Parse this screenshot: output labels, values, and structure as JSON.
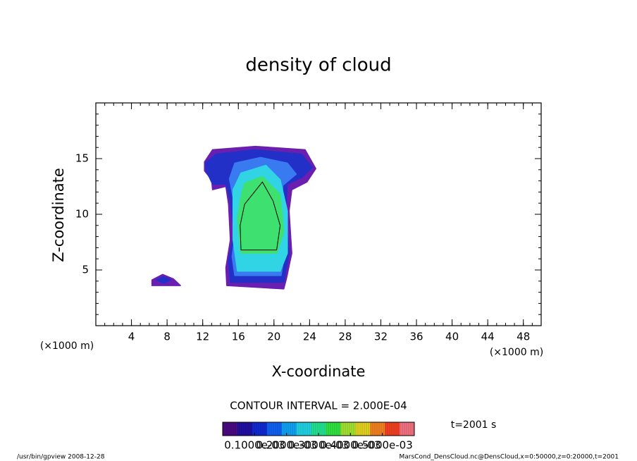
{
  "chart_data": {
    "type": "contour",
    "title": "density of cloud",
    "x_label": "X-coordinate",
    "y_label": "Z-coordinate",
    "x_unit": "(×1000 m)",
    "xlim": [
      0,
      50
    ],
    "xticks": [
      4,
      8,
      12,
      16,
      20,
      24,
      28,
      32,
      36,
      40,
      44,
      48
    ],
    "ylim": [
      0,
      20
    ],
    "yticks": [
      5,
      10,
      15
    ],
    "minor_tick_step": 1,
    "contour_interval": "CONTOUR INTERVAL = 2.000E-04",
    "time": "t=2001 s",
    "regions": [
      {
        "level": 1e-05,
        "color": "#6a1fb0",
        "polygons": [
          [
            [
              12.2,
              14.7
            ],
            [
              13.1,
              15.8
            ],
            [
              17.9,
              16.1
            ],
            [
              23.5,
              15.8
            ],
            [
              24.7,
              14.1
            ],
            [
              23.7,
              12.9
            ],
            [
              22.0,
              12.2
            ],
            [
              21.7,
              10.3
            ],
            [
              22.0,
              6.5
            ],
            [
              21.4,
              4.2
            ],
            [
              21.1,
              3.3
            ],
            [
              14.7,
              3.6
            ],
            [
              14.6,
              5.2
            ],
            [
              15.1,
              7.7
            ],
            [
              14.9,
              10.9
            ],
            [
              14.6,
              12.5
            ],
            [
              13.1,
              12.2
            ],
            [
              13.0,
              13.1
            ],
            [
              12.2,
              13.9
            ]
          ],
          [
            [
              6.3,
              4.1
            ],
            [
              7.5,
              4.6
            ],
            [
              8.7,
              4.2
            ],
            [
              9.5,
              3.6
            ],
            [
              8.3,
              3.6
            ],
            [
              6.3,
              3.6
            ]
          ]
        ]
      },
      {
        "level": 5e-05,
        "color": "#2230c8",
        "polygons": [
          [
            [
              12.3,
              14.6
            ],
            [
              13.5,
              15.4
            ],
            [
              17.9,
              15.8
            ],
            [
              23.1,
              15.4
            ],
            [
              24.3,
              14.2
            ],
            [
              23.1,
              13.3
            ],
            [
              21.5,
              12.7
            ],
            [
              21.3,
              10.3
            ],
            [
              21.7,
              6.5
            ],
            [
              21.1,
              3.9
            ],
            [
              15.1,
              3.9
            ],
            [
              14.9,
              5.8
            ],
            [
              15.5,
              8.4
            ],
            [
              15.1,
              11.2
            ],
            [
              14.6,
              12.7
            ],
            [
              13.1,
              12.7
            ],
            [
              12.4,
              13.9
            ]
          ],
          [
            [
              6.8,
              4.1
            ],
            [
              7.6,
              4.4
            ],
            [
              8.4,
              4.1
            ],
            [
              7.6,
              3.8
            ]
          ]
        ]
      },
      {
        "level": 0.0001,
        "color": "#3a7af0",
        "polygons": [
          [
            [
              15.6,
              14.6
            ],
            [
              18.5,
              15.1
            ],
            [
              21.5,
              14.6
            ],
            [
              22.5,
              13.6
            ],
            [
              21.0,
              12.6
            ],
            [
              20.9,
              10.3
            ],
            [
              21.2,
              6.5
            ],
            [
              20.8,
              4.5
            ],
            [
              15.6,
              4.5
            ],
            [
              15.3,
              6.2
            ],
            [
              15.7,
              8.6
            ],
            [
              15.4,
              11.5
            ],
            [
              15.0,
              13.2
            ]
          ]
        ]
      },
      {
        "level": 0.0002,
        "color": "#30d4e4",
        "polygons": [
          [
            [
              16.3,
              13.7
            ],
            [
              19.1,
              14.4
            ],
            [
              20.7,
              13.1
            ],
            [
              21.5,
              10.3
            ],
            [
              21.5,
              6.5
            ],
            [
              20.7,
              4.9
            ],
            [
              15.9,
              4.9
            ],
            [
              15.4,
              7.7
            ],
            [
              15.4,
              12.2
            ]
          ]
        ]
      },
      {
        "level": 0.0003,
        "color": "#3ee070",
        "polygons": [
          [
            [
              16.7,
              12.8
            ],
            [
              18.7,
              13.4
            ],
            [
              20.7,
              11.8
            ],
            [
              21.1,
              8.4
            ],
            [
              20.3,
              6.5
            ],
            [
              16.3,
              6.5
            ],
            [
              15.9,
              9.6
            ],
            [
              16.3,
              11.6
            ]
          ]
        ]
      }
    ],
    "contours": [
      {
        "level": 0.0004,
        "points": [
          [
            16.7,
            10.9
          ],
          [
            18.7,
            12.9
          ],
          [
            19.9,
            11.2
          ],
          [
            20.7,
            9.0
          ],
          [
            20.3,
            6.8
          ],
          [
            16.3,
            6.8
          ],
          [
            16.2,
            9.0
          ],
          [
            16.7,
            10.9
          ]
        ]
      }
    ],
    "colorbar_lim": [
      0,
      0.0006
    ],
    "colorbar_colors": [
      "#4a0a80",
      "#2010a0",
      "#1028d0",
      "#1060f0",
      "#10a0f0",
      "#20d0e0",
      "#20e090",
      "#30e040",
      "#a0e030",
      "#e0d020",
      "#f08020",
      "#f04020",
      "#f07080"
    ],
    "colorbar_ticks": [
      {
        "value": 0.0001,
        "label": "0.1000e-03"
      },
      {
        "value": 0.0002,
        "label": "0.2000e-03"
      },
      {
        "value": 0.0003,
        "label": "0.3000e-03"
      },
      {
        "value": 0.0004,
        "label": "0.4000e-03"
      },
      {
        "value": 0.0005,
        "label": "0.5000e-03"
      }
    ],
    "footer_left": "/usr/bin/gpview  2008-12-28",
    "footer_right": "MarsCond_DensCloud.nc@DensCloud,x=0:50000,z=0:20000,t=2001"
  }
}
